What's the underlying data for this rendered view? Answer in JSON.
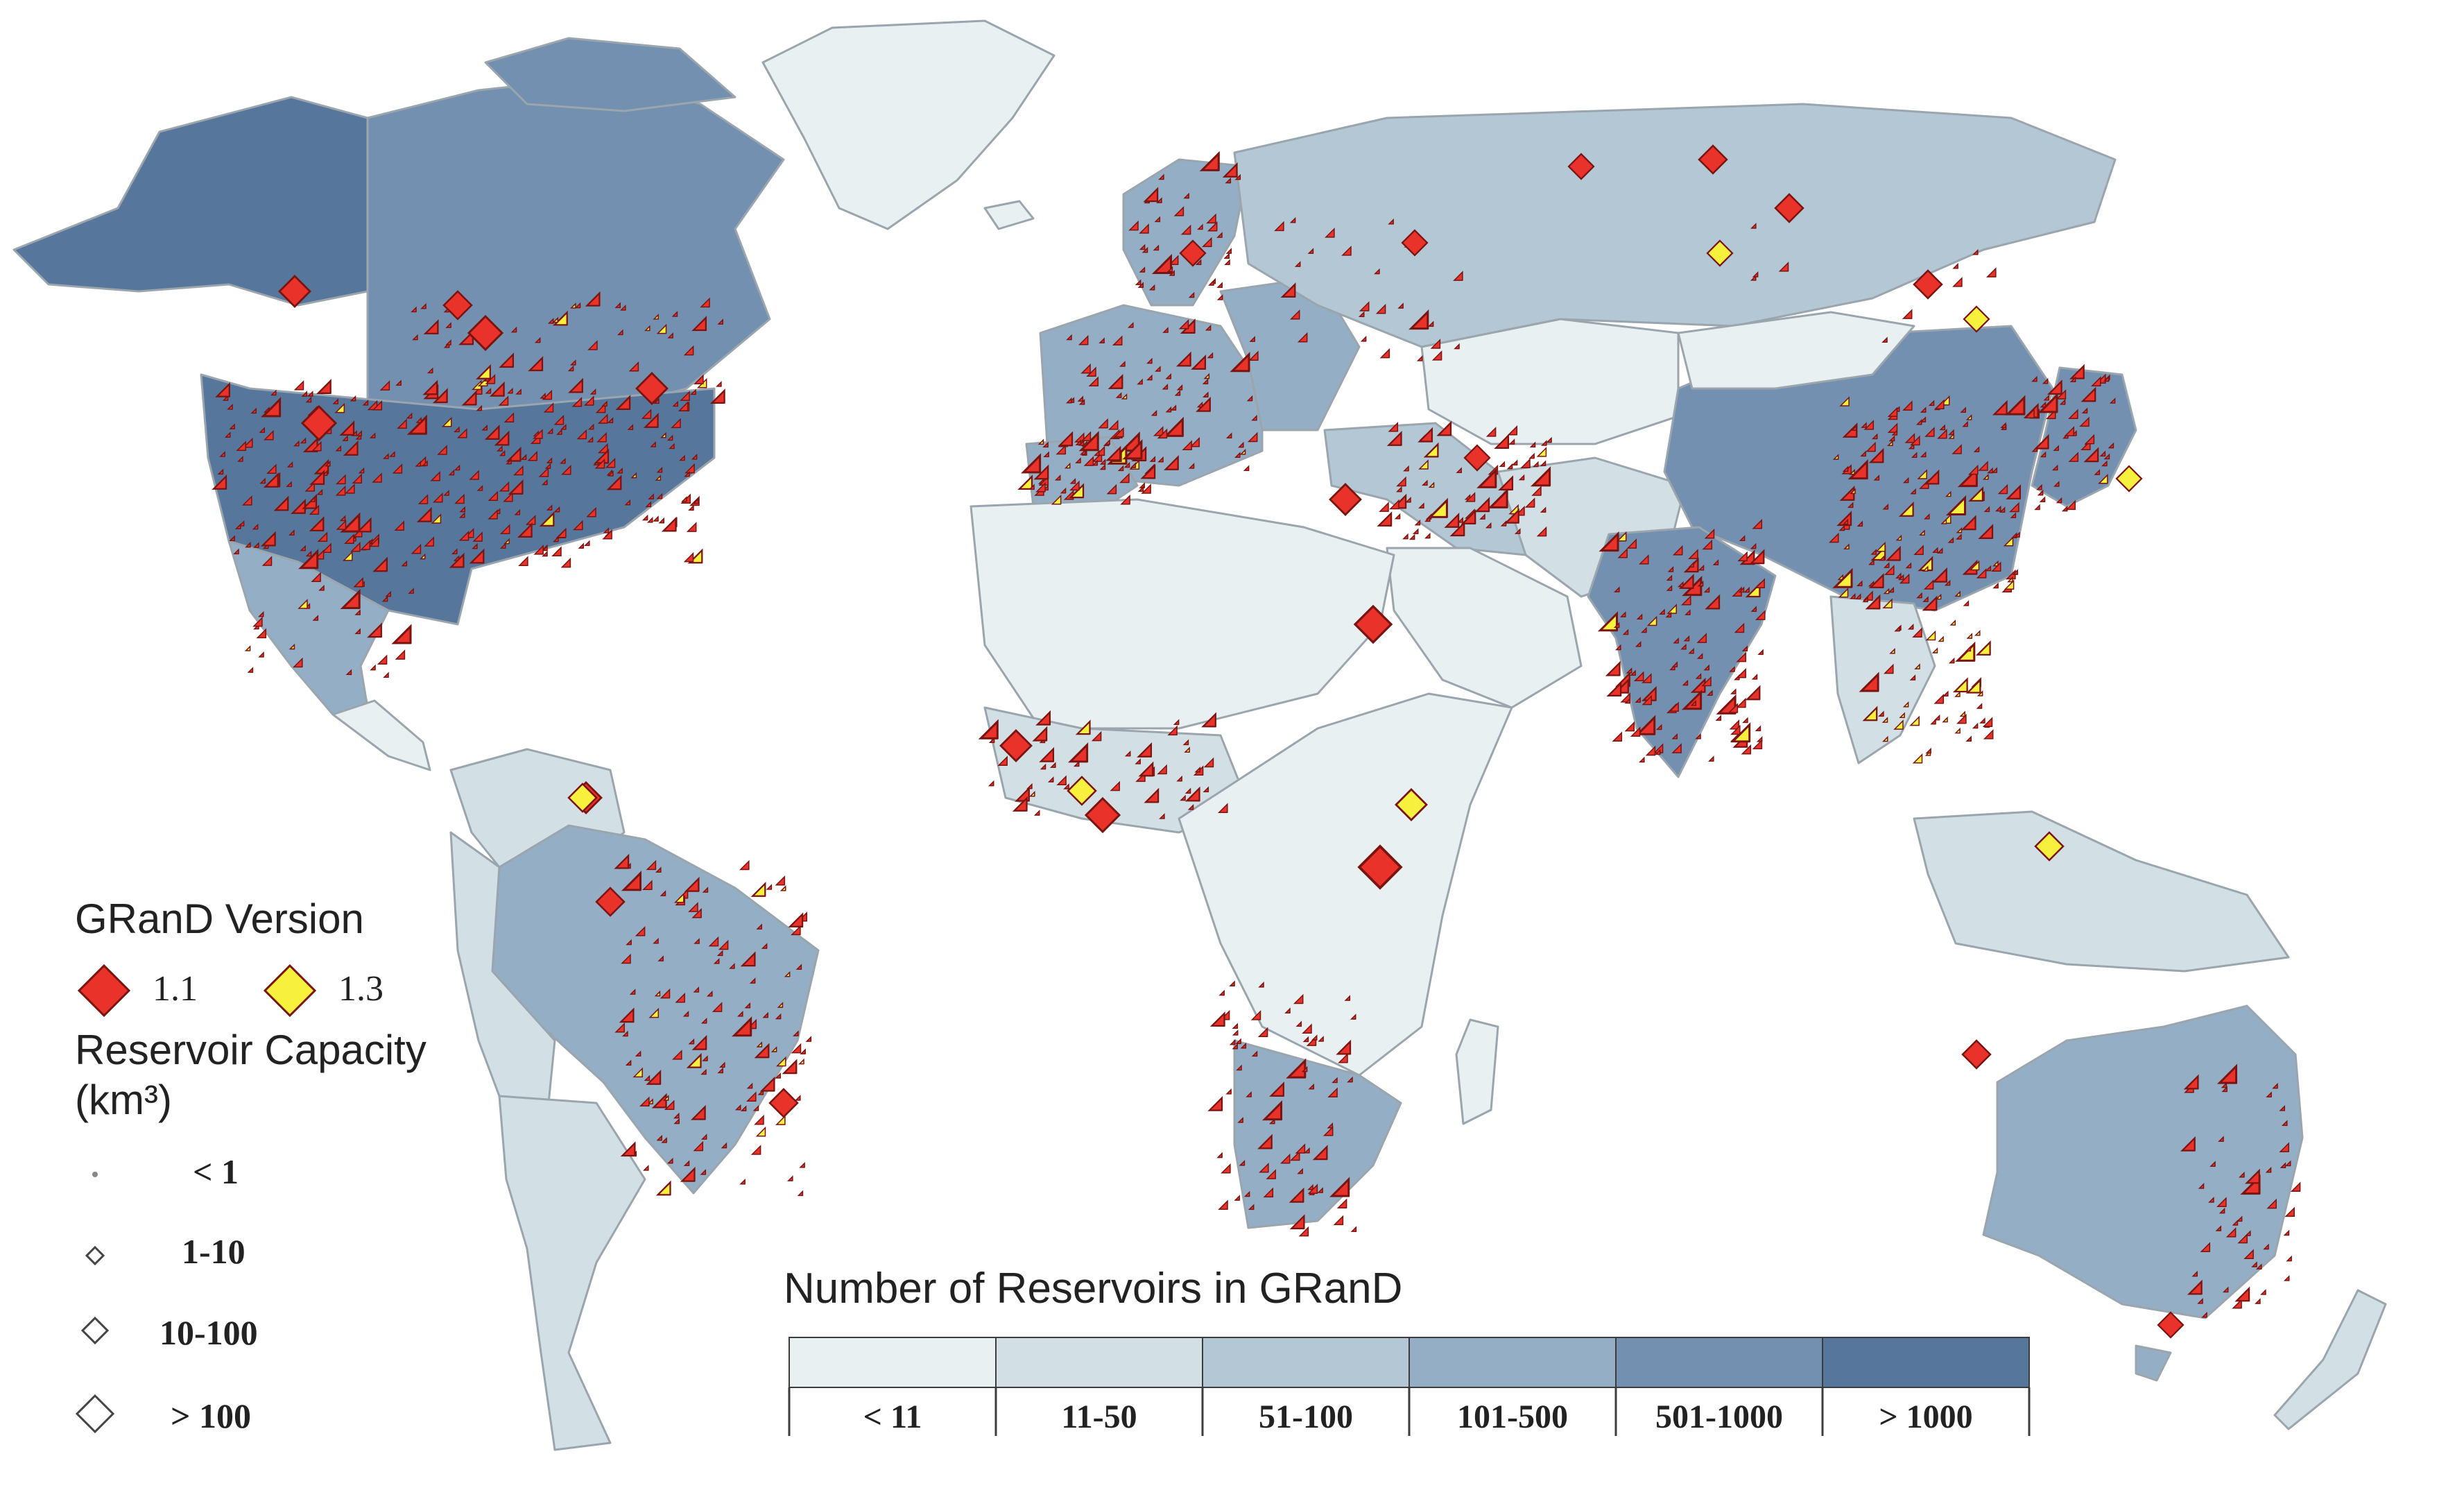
{
  "legend": {
    "version_title": "GRanD Version",
    "versions": [
      {
        "label": "1.1",
        "color": "#e8322a"
      },
      {
        "label": "1.3",
        "color": "#f7f03c"
      }
    ],
    "capacity_title": "Reservoir Capacity",
    "capacity_unit": "(km³)",
    "capacity_classes": [
      "< 1",
      "1-10",
      "10-100",
      "> 100"
    ]
  },
  "color_scale": {
    "title": "Number of Reservoirs in GRanD",
    "classes": [
      {
        "label": "< 11",
        "color": "#e9f0f2"
      },
      {
        "label": "11-50",
        "color": "#d2e0e6"
      },
      {
        "label": "51-100",
        "color": "#b3c7d5"
      },
      {
        "label": "101-500",
        "color": "#94aec6"
      },
      {
        "label": "501-1000",
        "color": "#7490b0"
      },
      {
        "label": "> 1000",
        "color": "#56769c"
      }
    ]
  },
  "colors": {
    "marker_outline": "#7a1410",
    "country_border": "#9aa5ad"
  }
}
